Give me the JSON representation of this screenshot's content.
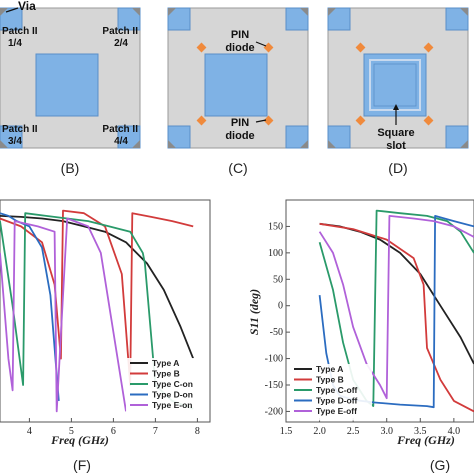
{
  "colors": {
    "substrate": "#d6d6d6",
    "patch": "#7fb2e5",
    "patch_border": "#5a8fc8",
    "via": "#8a8a8a",
    "diode": "#f08a3c",
    "panel_border": "#9a9a9a"
  },
  "panelB": {
    "caption": "(B)",
    "via_label": "Via",
    "patches": [
      "Patch II\n1/4",
      "Patch II\n2/4",
      "Patch II\n3/4",
      "Patch II\n4/4"
    ]
  },
  "panelC": {
    "caption": "(C)",
    "diode_top": "PIN\ndiode",
    "diode_bottom": "PIN\ndiode"
  },
  "panelD": {
    "caption": "(D)",
    "slot_label": "Square\nslot"
  },
  "chart_data": [
    {
      "type": "line",
      "panel": "(F)",
      "xlabel": "Freq (GHz)",
      "xticks": [
        "4",
        "5",
        "6",
        "7",
        "8"
      ],
      "xlim": [
        3.3,
        8.3
      ],
      "ylim": [
        -220,
        200
      ],
      "series": [
        {
          "name": "Type A",
          "color": "#222222",
          "x": [
            3.3,
            3.8,
            4.3,
            4.8,
            5.3,
            5.8,
            6.3,
            6.8,
            7.2,
            7.6,
            7.9
          ],
          "y": [
            170,
            168,
            165,
            160,
            150,
            140,
            120,
            80,
            30,
            -40,
            -100
          ]
        },
        {
          "name": "Type B",
          "color": "#d23b3b",
          "x": [
            3.3,
            3.8,
            4.3,
            4.6,
            4.75,
            4.8,
            5.3,
            5.8,
            6.2,
            6.4,
            6.45,
            6.9,
            7.4,
            7.9
          ],
          "y": [
            165,
            150,
            120,
            40,
            -100,
            180,
            175,
            150,
            60,
            -150,
            175,
            168,
            160,
            150
          ]
        },
        {
          "name": "Type C-on",
          "color": "#2a9a6a",
          "x": [
            3.3,
            3.6,
            3.85,
            3.9,
            4.4,
            4.9,
            5.4,
            5.9,
            6.4,
            6.7,
            6.75,
            7.0,
            7.4,
            7.9
          ],
          "y": [
            160,
            0,
            -150,
            175,
            170,
            165,
            160,
            150,
            140,
            100,
            80,
            -150,
            -180,
            -195
          ]
        },
        {
          "name": "Type D-on",
          "color": "#2b6cc0",
          "x": [
            3.3,
            3.5,
            3.7,
            4.0,
            4.3,
            4.5,
            4.6,
            4.7
          ],
          "y": [
            175,
            170,
            160,
            150,
            110,
            20,
            -80,
            -180
          ]
        },
        {
          "name": "Type E-on",
          "color": "#b061d9",
          "x": [
            3.3,
            3.4,
            3.5,
            3.6,
            3.65,
            4.2,
            4.6,
            4.65,
            4.9,
            5.4,
            5.7,
            6.0,
            6.3
          ],
          "y": [
            100,
            0,
            -100,
            -160,
            160,
            150,
            140,
            -200,
            165,
            150,
            100,
            -50,
            -200
          ]
        }
      ]
    },
    {
      "type": "line",
      "panel": "(G)",
      "xlabel": "Freq (GHz)",
      "ylabel": "S11 (deg)",
      "xticks": [
        "1.5",
        "2.0",
        "2.5",
        "3.0",
        "3.5",
        "4.0"
      ],
      "yticks": [
        "150",
        "100",
        "50",
        "0",
        "-50",
        "-100",
        "-150",
        "-200"
      ],
      "xlim": [
        1.5,
        4.3
      ],
      "ylim": [
        -220,
        200
      ],
      "series": [
        {
          "name": "Type A",
          "color": "#222222",
          "x": [
            2.0,
            2.3,
            2.6,
            2.9,
            3.2,
            3.5,
            3.8,
            4.1,
            4.3
          ],
          "y": [
            155,
            150,
            140,
            125,
            100,
            60,
            0,
            -60,
            -110
          ]
        },
        {
          "name": "Type B",
          "color": "#d23b3b",
          "x": [
            2.0,
            2.5,
            3.0,
            3.4,
            3.55,
            3.6,
            3.8,
            4.0,
            4.3
          ],
          "y": [
            155,
            145,
            125,
            90,
            40,
            -80,
            -140,
            -180,
            -200
          ]
        },
        {
          "name": "Type C-off",
          "color": "#2a9a6a",
          "x": [
            2.0,
            2.2,
            2.35,
            2.5,
            2.7,
            2.8,
            2.85,
            3.2,
            3.6,
            3.9,
            4.1,
            4.3
          ],
          "y": [
            120,
            30,
            -70,
            -140,
            -180,
            -190,
            180,
            175,
            170,
            160,
            140,
            100
          ]
        },
        {
          "name": "Type D-off",
          "color": "#2b6cc0",
          "x": [
            2.0,
            2.1,
            2.2,
            2.3,
            2.5,
            2.8,
            3.2,
            3.6,
            3.7,
            3.72,
            4.0,
            4.3
          ],
          "y": [
            20,
            -90,
            -150,
            -170,
            -178,
            -183,
            -187,
            -190,
            -192,
            170,
            160,
            150
          ]
        },
        {
          "name": "Type E-off",
          "color": "#b061d9",
          "x": [
            2.0,
            2.2,
            2.35,
            2.5,
            2.7,
            2.9,
            3.0,
            3.04,
            3.4,
            3.7,
            4.0,
            4.3
          ],
          "y": [
            140,
            100,
            40,
            -40,
            -110,
            -150,
            -175,
            170,
            165,
            160,
            150,
            130
          ]
        }
      ]
    }
  ],
  "captions": {
    "F": "(F)",
    "G": "(G)"
  }
}
